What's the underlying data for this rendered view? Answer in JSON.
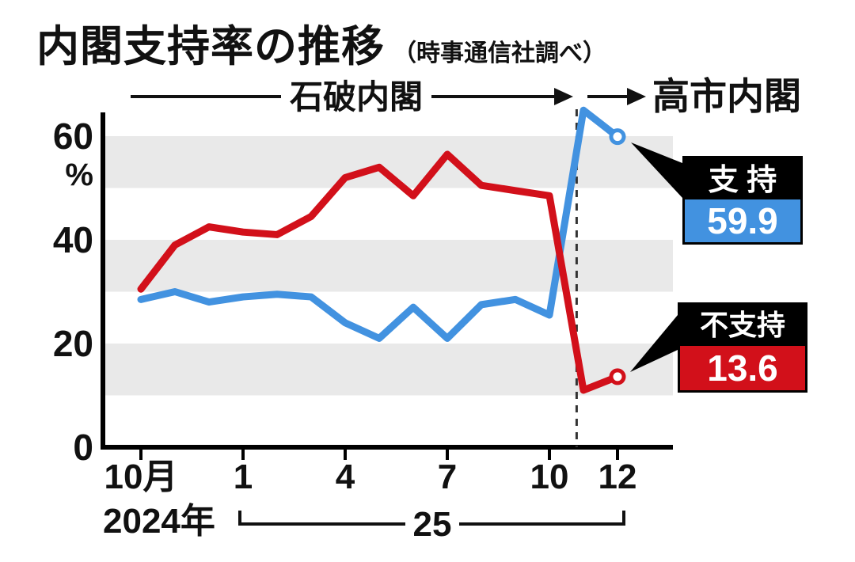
{
  "chart_data": {
    "type": "line",
    "title": "内閣支持率の推移",
    "subtitle": "（時事通信社調べ）",
    "unit": "%",
    "x": [
      "24/10",
      "24/11",
      "24/12",
      "25/1",
      "25/2",
      "25/3",
      "25/4",
      "25/5",
      "25/6",
      "25/7",
      "25/8",
      "25/9",
      "25/10",
      "25/11",
      "25/12"
    ],
    "x_tick_labels": [
      {
        "index": 0,
        "label": "10月"
      },
      {
        "index": 3,
        "label": "1"
      },
      {
        "index": 6,
        "label": "4"
      },
      {
        "index": 9,
        "label": "7"
      },
      {
        "index": 12,
        "label": "10"
      },
      {
        "index": 14,
        "label": "12"
      }
    ],
    "y_ticks": [
      0,
      20,
      40,
      60
    ],
    "ylim": [
      0,
      68
    ],
    "grid": "horizontal-bands",
    "series": [
      {
        "name": "支持",
        "color": "#4292e0",
        "values": [
          28.5,
          30.0,
          28.0,
          29.0,
          29.5,
          29.0,
          24.0,
          21.0,
          27.0,
          21.0,
          27.5,
          28.5,
          25.5,
          65.0,
          59.9
        ]
      },
      {
        "name": "不支持",
        "color": "#d2101a",
        "values": [
          30.5,
          39.0,
          42.5,
          41.5,
          41.0,
          44.5,
          52.0,
          54.0,
          48.5,
          56.5,
          50.5,
          49.5,
          48.5,
          11.0,
          13.6
        ]
      }
    ],
    "annotations": {
      "era_left": "石破内閣",
      "era_right": "高市内閣",
      "year_label": "2024年",
      "span_label": "25",
      "divider_month_index": 12.8
    },
    "legend": {
      "approval_label": "支 持",
      "approval_value": "59.9",
      "disapproval_label": "不支持",
      "disapproval_value": "13.6"
    }
  }
}
